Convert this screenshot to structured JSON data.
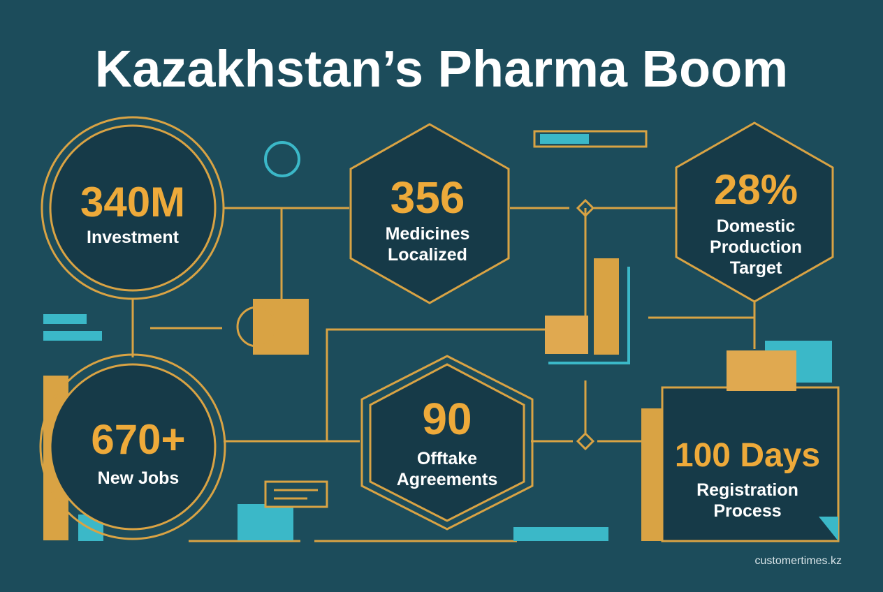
{
  "title": "Kazakhstan’s Pharma Boom",
  "stats": [
    {
      "value": "340M",
      "label": [
        "Investment"
      ]
    },
    {
      "value": "356",
      "label": [
        "Medicines",
        "Localized"
      ]
    },
    {
      "value": "28%",
      "label": [
        "Domestic",
        "Production",
        "Target"
      ]
    },
    {
      "value": "670+",
      "label": [
        "New Jobs"
      ]
    },
    {
      "value": "90",
      "label": [
        "Offtake",
        "Agreements"
      ]
    },
    {
      "value": "100 Days",
      "label": [
        "Registration",
        "Process"
      ]
    }
  ],
  "footer": "customertimes.kz"
}
